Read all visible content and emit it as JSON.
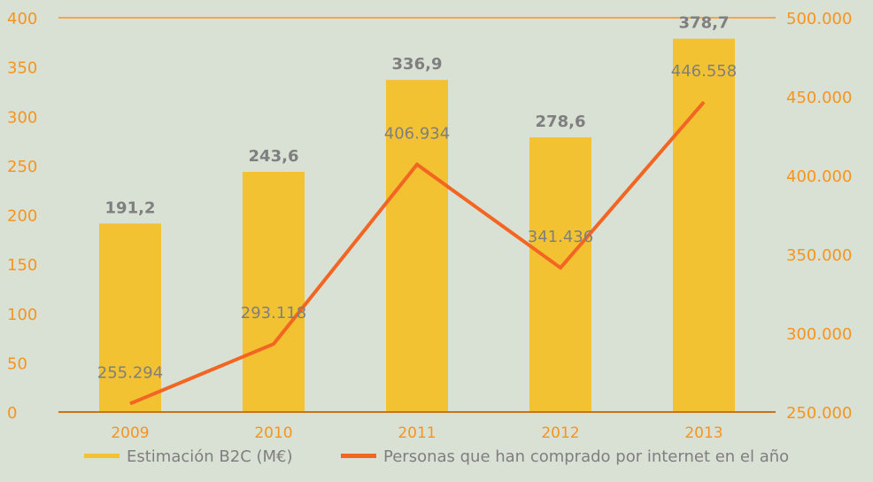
{
  "chart_data": {
    "type": "bar",
    "categories": [
      "2009",
      "2010",
      "2011",
      "2012",
      "2013"
    ],
    "series": [
      {
        "name": "Estimación B2C (M€)",
        "type": "bar",
        "color": "#f3c232",
        "values": [
          191.2,
          243.6,
          336.9,
          278.6,
          378.7
        ],
        "value_labels": [
          "191,2",
          "243,6",
          "336,9",
          "278,6",
          "378,7"
        ]
      },
      {
        "name": "Personas que han comprado por internet en el año",
        "type": "line",
        "axis": "y2",
        "color": "#f26522",
        "values": [
          255294,
          293118,
          406934,
          341436,
          446558
        ],
        "value_labels": [
          "255.294",
          "293.118",
          "406.934",
          "341.436",
          "446.558"
        ]
      }
    ],
    "ylim": [
      0,
      400
    ],
    "yticks": [
      0,
      50,
      100,
      150,
      200,
      250,
      300,
      350,
      400
    ],
    "y2lim": [
      250000,
      500000
    ],
    "y2ticks": [
      {
        "value": 250000,
        "label": "250.000"
      },
      {
        "value": 300000,
        "label": "300.000"
      },
      {
        "value": 350000,
        "label": "350.000"
      },
      {
        "value": 400000,
        "label": "400.000"
      },
      {
        "value": 450000,
        "label": "450.000"
      },
      {
        "value": 500000,
        "label": "500.000"
      }
    ],
    "legend": "bottom"
  }
}
